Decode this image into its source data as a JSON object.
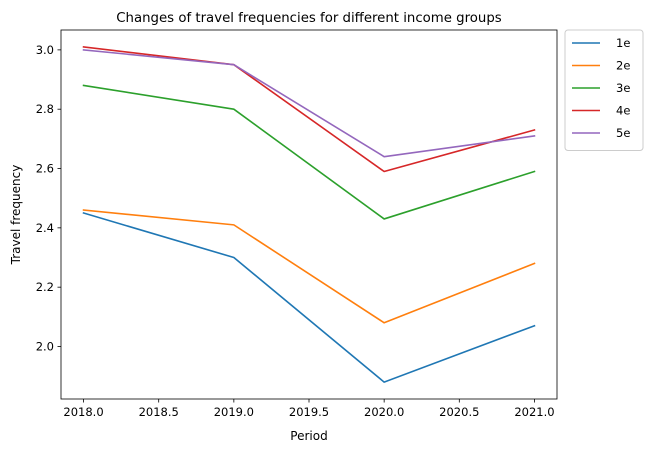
{
  "chart_data": {
    "type": "line",
    "title": "Changes of travel frequencies for different income groups",
    "xlabel": "Period",
    "ylabel": "Travel frequency",
    "x": [
      2018,
      2019,
      2020,
      2021
    ],
    "xlim": [
      2017.85,
      2021.15
    ],
    "ylim": [
      1.823,
      3.067
    ],
    "xticks": [
      2018.0,
      2018.5,
      2019.0,
      2019.5,
      2020.0,
      2020.5,
      2021.0
    ],
    "xtick_labels": [
      "2018.0",
      "2018.5",
      "2019.0",
      "2019.5",
      "2020.0",
      "2020.5",
      "2021.0"
    ],
    "yticks": [
      2.0,
      2.2,
      2.4,
      2.6,
      2.8,
      3.0
    ],
    "ytick_labels": [
      "2.0",
      "2.2",
      "2.4",
      "2.6",
      "2.8",
      "3.0"
    ],
    "grid": false,
    "legend_position": "outside-top-right",
    "series": [
      {
        "name": "1e",
        "color": "#1f77b4",
        "values": [
          2.45,
          2.3,
          1.88,
          2.07
        ]
      },
      {
        "name": "2e",
        "color": "#ff7f0e",
        "values": [
          2.46,
          2.41,
          2.08,
          2.28
        ]
      },
      {
        "name": "3e",
        "color": "#2ca02c",
        "values": [
          2.88,
          2.8,
          2.43,
          2.59
        ]
      },
      {
        "name": "4e",
        "color": "#d62728",
        "values": [
          3.01,
          2.95,
          2.59,
          2.73
        ]
      },
      {
        "name": "5e",
        "color": "#9467bd",
        "values": [
          3.0,
          2.95,
          2.64,
          2.71
        ]
      }
    ]
  }
}
